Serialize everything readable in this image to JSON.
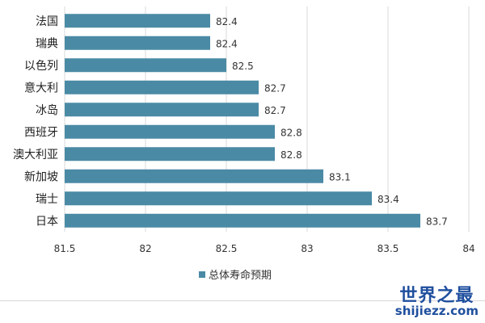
{
  "chart_data": {
    "type": "bar",
    "orientation": "horizontal",
    "categories": [
      "法国",
      "瑞典",
      "以色列",
      "意大利",
      "冰岛",
      "西班牙",
      "澳大利亚",
      "新加坡",
      "瑞士",
      "日本"
    ],
    "values": [
      82.4,
      82.4,
      82.5,
      82.7,
      82.7,
      82.8,
      82.8,
      83.1,
      83.4,
      83.7
    ],
    "data_labels": [
      "82.4",
      "82.4",
      "82.5",
      "82.7",
      "82.7",
      "82.8",
      "82.8",
      "83.1",
      "83.4",
      "83.7"
    ],
    "series": [
      {
        "name": "总体寿命预期"
      }
    ],
    "xlim": [
      81.5,
      84
    ],
    "xticks": [
      "81.5",
      "82",
      "82.5",
      "83",
      "83.5",
      "84"
    ],
    "grid": true,
    "legend": "bottom",
    "color": "#4a8aa5"
  },
  "watermark": {
    "name": "世界之最",
    "url": "shijiezz.com"
  }
}
